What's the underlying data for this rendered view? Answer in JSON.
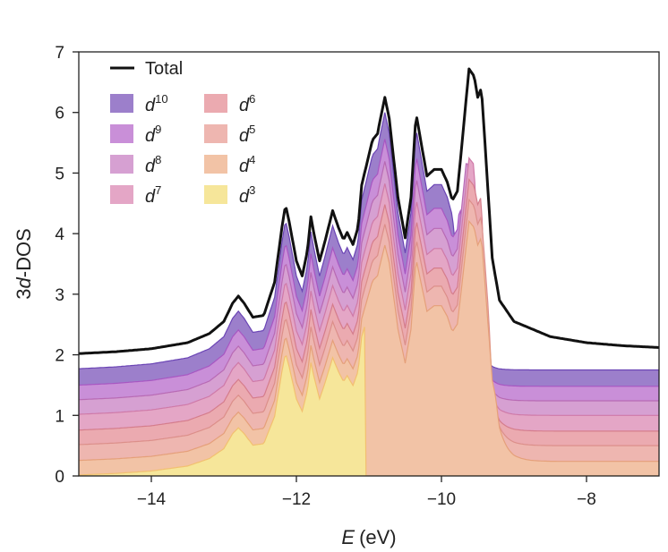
{
  "chart_data": {
    "type": "area",
    "xlabel_var": "E",
    "xlabel_unit": "(eV)",
    "ylabel_prefix": "3",
    "ylabel_var": "d",
    "ylabel_suffix": "-DOS",
    "xlim": [
      -15,
      -7
    ],
    "ylim": [
      0,
      7
    ],
    "xticks": [
      -14,
      -12,
      -10,
      -8
    ],
    "xtick_labels": [
      "−14",
      "−12",
      "−10",
      "−8"
    ],
    "yticks": [
      0,
      1,
      2,
      3,
      4,
      5,
      6,
      7
    ],
    "ytick_labels": [
      "0",
      "1",
      "2",
      "3",
      "4",
      "5",
      "6",
      "7"
    ],
    "grid": false,
    "legend_position": "top-left",
    "total": {
      "name": "Total",
      "color": "#111111",
      "points": [
        [
          -15,
          2.02
        ],
        [
          -14.5,
          2.05
        ],
        [
          -14,
          2.1
        ],
        [
          -13.5,
          2.2
        ],
        [
          -13.2,
          2.35
        ],
        [
          -13.0,
          2.55
        ],
        [
          -12.88,
          2.85
        ],
        [
          -12.8,
          2.97
        ],
        [
          -12.72,
          2.85
        ],
        [
          -12.6,
          2.62
        ],
        [
          -12.45,
          2.65
        ],
        [
          -12.3,
          3.2
        ],
        [
          -12.2,
          4.1
        ],
        [
          -12.15,
          4.47
        ],
        [
          -12.1,
          4.2
        ],
        [
          -12.0,
          3.55
        ],
        [
          -11.92,
          3.3
        ],
        [
          -11.85,
          3.7
        ],
        [
          -11.8,
          4.28
        ],
        [
          -11.75,
          3.95
        ],
        [
          -11.68,
          3.55
        ],
        [
          -11.6,
          3.9
        ],
        [
          -11.5,
          4.38
        ],
        [
          -11.42,
          4.1
        ],
        [
          -11.35,
          3.9
        ],
        [
          -11.3,
          4.02
        ],
        [
          -11.22,
          3.82
        ],
        [
          -11.15,
          4.1
        ],
        [
          -11.1,
          4.8
        ],
        [
          -11.0,
          5.3
        ],
        [
          -10.95,
          5.55
        ],
        [
          -10.88,
          5.65
        ],
        [
          -10.85,
          5.85
        ],
        [
          -10.78,
          6.25
        ],
        [
          -10.72,
          5.9
        ],
        [
          -10.6,
          4.6
        ],
        [
          -10.5,
          3.93
        ],
        [
          -10.42,
          4.6
        ],
        [
          -10.35,
          5.98
        ],
        [
          -10.28,
          5.5
        ],
        [
          -10.2,
          4.95
        ],
        [
          -10.1,
          5.06
        ],
        [
          -10.0,
          5.06
        ],
        [
          -9.92,
          4.85
        ],
        [
          -9.85,
          4.55
        ],
        [
          -9.78,
          4.7
        ],
        [
          -9.7,
          5.7
        ],
        [
          -9.62,
          6.72
        ],
        [
          -9.55,
          6.6
        ],
        [
          -9.5,
          6.25
        ],
        [
          -9.45,
          6.4
        ],
        [
          -9.4,
          5.5
        ],
        [
          -9.3,
          3.6
        ],
        [
          -9.2,
          2.9
        ],
        [
          -9.0,
          2.55
        ],
        [
          -8.5,
          2.3
        ],
        [
          -8.0,
          2.2
        ],
        [
          -7.5,
          2.15
        ],
        [
          -7,
          2.12
        ]
      ]
    },
    "series": [
      {
        "name": "10",
        "color": "#9c7fcb",
        "line_color": "#6b45b5",
        "offset": 1.75,
        "scale": 1.0
      },
      {
        "name": "9",
        "color": "#c98fd8",
        "line_color": "#a857c2",
        "offset": 1.48,
        "scale": 0.96
      },
      {
        "name": "8",
        "color": "#d6a0d2",
        "line_color": "#b86ab4",
        "offset": 1.24,
        "scale": 0.93
      },
      {
        "name": "7",
        "color": "#e4a6c6",
        "line_color": "#cf7aa8",
        "offset": 1.0,
        "scale": 0.9
      },
      {
        "name": "6",
        "color": "#ebaab0",
        "line_color": "#d57d8c",
        "offset": 0.74,
        "scale": 0.88
      },
      {
        "name": "5",
        "color": "#eeb6b0",
        "line_color": "#dc8f8a",
        "offset": 0.5,
        "scale": 0.86
      },
      {
        "name": "4",
        "color": "#f2c3a6",
        "line_color": "#e5a07a",
        "offset": 0.24,
        "scale": 0.84
      },
      {
        "name": "3",
        "color": "#f6e69a",
        "line_color": "#f2c070",
        "offset": 0.0,
        "scale": 0.82
      }
    ],
    "legend": {
      "total_label": "Total",
      "var": "d"
    }
  }
}
